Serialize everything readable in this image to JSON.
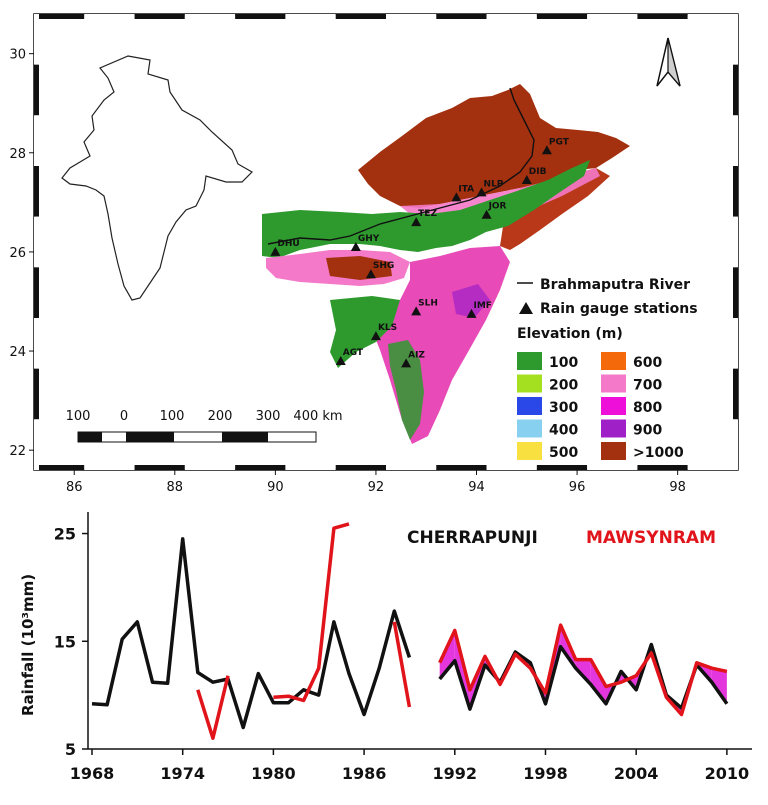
{
  "map": {
    "lon_ticks": [
      "86",
      "88",
      "90",
      "92",
      "94",
      "96",
      "98"
    ],
    "lat_ticks": [
      "30",
      "28",
      "26",
      "24",
      "22"
    ],
    "lon_range": [
      85.2,
      99.2
    ],
    "lat_range": [
      21.6,
      30.8
    ],
    "scale_bar": {
      "labels": [
        "100",
        "0",
        "100",
        "200",
        "300",
        "400 km"
      ]
    },
    "stations": [
      {
        "id": "PGT",
        "lon": 95.4,
        "lat": 28.05
      },
      {
        "id": "DIB",
        "lon": 95.0,
        "lat": 27.45
      },
      {
        "id": "NLP",
        "lon": 94.1,
        "lat": 27.2
      },
      {
        "id": "ITA",
        "lon": 93.6,
        "lat": 27.1
      },
      {
        "id": "JOR",
        "lon": 94.2,
        "lat": 26.75
      },
      {
        "id": "TEZ",
        "lon": 92.8,
        "lat": 26.6
      },
      {
        "id": "GHY",
        "lon": 91.6,
        "lat": 26.1
      },
      {
        "id": "DHU",
        "lon": 90.0,
        "lat": 26.0
      },
      {
        "id": "SHG",
        "lon": 91.9,
        "lat": 25.55
      },
      {
        "id": "SLH",
        "lon": 92.8,
        "lat": 24.8
      },
      {
        "id": "IMF",
        "lon": 93.9,
        "lat": 24.75
      },
      {
        "id": "KLS",
        "lon": 92.0,
        "lat": 24.3
      },
      {
        "id": "AGT",
        "lon": 91.3,
        "lat": 23.8
      },
      {
        "id": "AIZ",
        "lon": 92.6,
        "lat": 23.75
      }
    ],
    "legend": {
      "river_label": "Brahmaputra River",
      "station_label": "Rain gauge stations",
      "elevation_title": "Elevation (m)",
      "classes": [
        {
          "label": "100",
          "color": "#2e9a2e"
        },
        {
          "label": "200",
          "color": "#a4e020"
        },
        {
          "label": "300",
          "color": "#2a48e8"
        },
        {
          "label": "400",
          "color": "#88d0f0"
        },
        {
          "label": "500",
          "color": "#f8e040"
        },
        {
          "label": "600",
          "color": "#f46a0a"
        },
        {
          "label": "700",
          "color": "#f479c8"
        },
        {
          "label": "800",
          "color": "#ee10d8"
        },
        {
          "label": "900",
          "color": "#a020c8"
        },
        {
          "label": ">1000",
          "color": "#a3300f"
        }
      ]
    }
  },
  "chart_data": {
    "type": "line",
    "ylabel": "Rainfall (10³mm)",
    "ylim": [
      5,
      27
    ],
    "xlim": [
      1968,
      2011
    ],
    "yticks": [
      5,
      15,
      25
    ],
    "xticks": [
      1968,
      1974,
      1980,
      1986,
      1992,
      1998,
      2004,
      2010
    ],
    "series": [
      {
        "name": "CHERRAPUNJI",
        "color": "#111111",
        "x": [
          1968,
          1969,
          1970,
          1971,
          1972,
          1973,
          1974,
          1975,
          1976,
          1977,
          1978,
          1979,
          1980,
          1981,
          1982,
          1983,
          1984,
          1985,
          1986,
          1987,
          1988,
          1989
        ],
        "y": [
          9.2,
          9.1,
          15.2,
          16.8,
          11.2,
          11.1,
          24.5,
          12.1,
          11.2,
          11.5,
          7.0,
          12.0,
          9.3,
          9.3,
          10.5,
          10.0,
          16.8,
          12.0,
          8.2,
          12.5,
          17.8,
          13.5
        ]
      },
      {
        "name": "CHERRAPUNJI",
        "color": "#111111",
        "x": [
          1991,
          1992,
          1993,
          1994,
          1995,
          1996,
          1997,
          1998,
          1999,
          2000,
          2001,
          2002,
          2003,
          2004,
          2005,
          2006,
          2007,
          2008,
          2009,
          2010
        ],
        "y": [
          11.5,
          13.2,
          8.7,
          12.8,
          11.2,
          14.0,
          13.0,
          9.2,
          14.5,
          12.5,
          11.0,
          9.2,
          12.2,
          10.5,
          14.7,
          10.0,
          8.8,
          12.8,
          11.2,
          9.2
        ]
      },
      {
        "name": "MAWSYNRAM",
        "color": "#e0141a",
        "x": [
          1975,
          1976,
          1977,
          1978,
          1979,
          1980,
          1981,
          1982,
          1983,
          1984,
          1985,
          1986,
          1987,
          1988,
          1989
        ],
        "y": [
          10.5,
          6.0,
          11.8,
          null,
          null,
          9.8,
          9.9,
          9.5,
          12.5,
          25.5,
          25.9,
          null,
          null,
          16.8,
          8.9
        ]
      },
      {
        "name": "MAWSYNRAM",
        "color": "#e0141a",
        "x": [
          1991,
          1992,
          1993,
          1994,
          1995,
          1996,
          1997,
          1998,
          1999,
          2000,
          2001,
          2002,
          2003,
          2004,
          2005,
          2006,
          2007,
          2008,
          2009,
          2010
        ],
        "y": [
          13.0,
          16.0,
          10.5,
          13.6,
          11.0,
          13.8,
          12.5,
          10.2,
          16.5,
          13.3,
          13.3,
          10.8,
          11.2,
          11.8,
          13.9,
          9.8,
          8.2,
          13.0,
          12.5,
          12.2
        ]
      }
    ]
  },
  "chart_labels": {
    "series_a": "CHERRAPUNJI",
    "series_b": "MAWSYNRAM"
  }
}
